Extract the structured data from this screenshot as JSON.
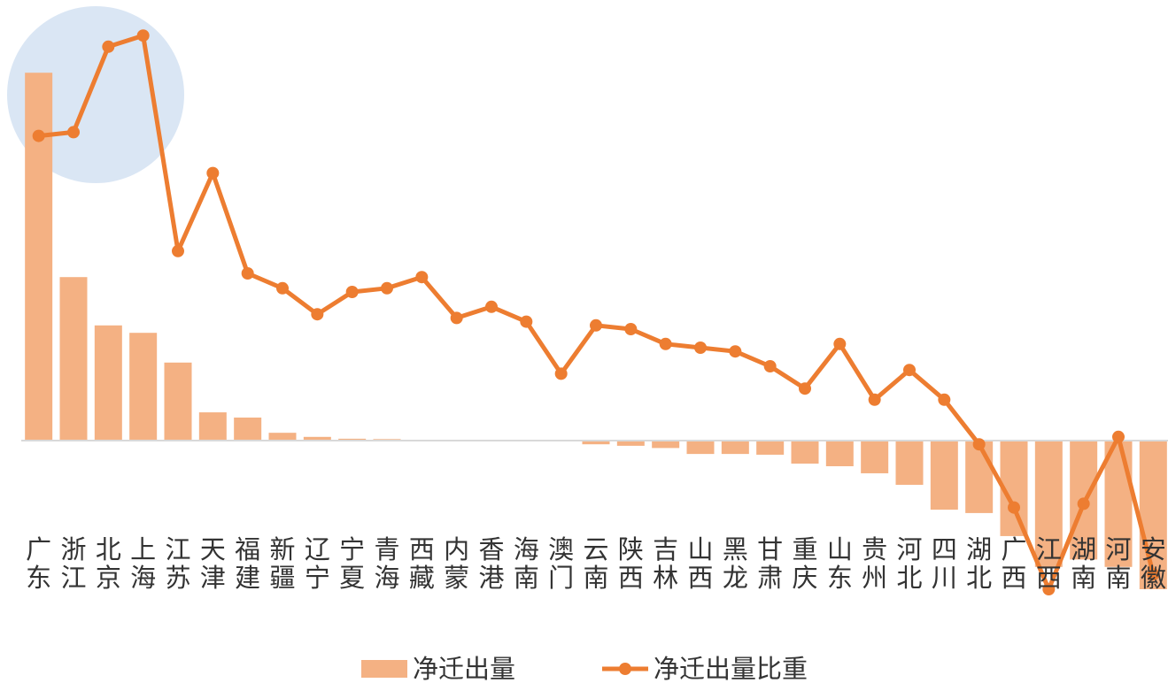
{
  "chart_data": {
    "type": "bar_line",
    "categories": [
      "广东",
      "浙江",
      "北京",
      "上海",
      "江苏",
      "天津",
      "福建",
      "新疆",
      "辽宁",
      "宁夏",
      "青海",
      "西藏",
      "内蒙",
      "香港",
      "海南",
      "澳门",
      "云南",
      "陕西",
      "吉林",
      "山西",
      "黑龙",
      "甘肃",
      "重庆",
      "山东",
      "贵州",
      "河北",
      "四川",
      "湖北",
      "广西",
      "江西",
      "湖南",
      "河南",
      "安徽"
    ],
    "series": [
      {
        "name": "净迁出量",
        "type": "bar",
        "color": "#f4b183",
        "values": [
          99,
          44,
          31,
          29,
          21,
          7.6,
          6.2,
          2.1,
          1,
          0.5,
          0.4,
          0.2,
          0.2,
          0,
          0,
          0,
          -1,
          -1.4,
          -2,
          -3.6,
          -3.6,
          -3.8,
          -6.2,
          -6.9,
          -8.8,
          -11.9,
          -18.6,
          -19.5,
          -25.7,
          -34,
          -32,
          -34,
          -40
        ]
      },
      {
        "name": "净迁出量比重",
        "type": "line",
        "axis": "y2",
        "color": "#ed7d31",
        "values": [
          8.2,
          8.3,
          10.6,
          10.9,
          5.1,
          7.2,
          4.5,
          4.1,
          3.4,
          4.0,
          4.1,
          4.4,
          3.3,
          3.6,
          3.2,
          1.8,
          3.1,
          3.0,
          2.6,
          2.5,
          2.4,
          2.0,
          1.4,
          2.6,
          1.1,
          1.9,
          1.1,
          -0.1,
          -1.8,
          -4.0,
          -1.7,
          0.1,
          -3.6
        ]
      }
    ],
    "ylim": [
      -40,
      110
    ],
    "y2lim": [
      -4,
      11
    ],
    "legend": "bottom"
  }
}
